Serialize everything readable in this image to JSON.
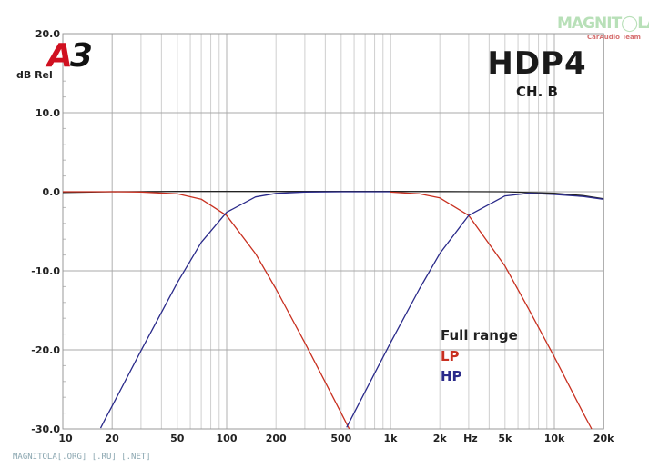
{
  "header": {
    "title": "HDP4",
    "subtitle": "CH. B",
    "logo": "A3",
    "watermark": "MAGNITOLA",
    "watermark_sub": "CarAudio Team"
  },
  "footer": {
    "text": "MAGNITOLA[.ORG] [.RU] [.NET]"
  },
  "chart_data": {
    "type": "line",
    "title": "HDP4",
    "subtitle": "CH. B",
    "ylabel": "dB Rel",
    "xlabel": "Hz",
    "xscale": "log",
    "xlim": [
      10,
      20000
    ],
    "ylim": [
      -30,
      20
    ],
    "grid": true,
    "legend_position": "bottom-right",
    "yticks": [
      {
        "v": 20,
        "label": "20.0"
      },
      {
        "v": 10,
        "label": "10.0"
      },
      {
        "v": 0,
        "label": "0.0"
      },
      {
        "v": -10,
        "label": "-10.0"
      },
      {
        "v": -20,
        "label": "-20.0"
      },
      {
        "v": -30,
        "label": "-30.0"
      }
    ],
    "xticks": [
      {
        "v": 10,
        "label": "10"
      },
      {
        "v": 20,
        "label": "20"
      },
      {
        "v": 50,
        "label": "50"
      },
      {
        "v": 100,
        "label": "100"
      },
      {
        "v": 200,
        "label": "200"
      },
      {
        "v": 500,
        "label": "500"
      },
      {
        "v": 1000,
        "label": "1k"
      },
      {
        "v": 2000,
        "label": "2k"
      },
      {
        "v": 5000,
        "label": "5k"
      },
      {
        "v": 10000,
        "label": "10k"
      },
      {
        "v": 20000,
        "label": "20k"
      }
    ],
    "series": [
      {
        "name": "Full range",
        "color": "#222222",
        "points": [
          [
            10,
            -0.1
          ],
          [
            20,
            0
          ],
          [
            50,
            0.05
          ],
          [
            100,
            0.05
          ],
          [
            500,
            0.05
          ],
          [
            1000,
            0.05
          ],
          [
            2000,
            0.02
          ],
          [
            5000,
            0
          ],
          [
            7000,
            -0.1
          ],
          [
            10000,
            -0.2
          ],
          [
            15000,
            -0.5
          ],
          [
            20000,
            -0.9
          ]
        ]
      },
      {
        "name": "LP",
        "color": "#c83020",
        "points": [
          [
            10,
            0
          ],
          [
            20,
            0
          ],
          [
            30,
            -0.04
          ],
          [
            50,
            -0.26
          ],
          [
            70,
            -0.94
          ],
          [
            100,
            -3.01
          ],
          [
            150,
            -7.83
          ],
          [
            200,
            -12.3
          ],
          [
            300,
            -19.1
          ],
          [
            400,
            -24.1
          ],
          [
            500,
            -28.0
          ],
          [
            560,
            -30
          ]
        ]
      },
      {
        "name": "HP",
        "color": "#2a2a8a",
        "points": [
          [
            17,
            -29.9
          ],
          [
            18,
            -28.9
          ],
          [
            20,
            -27.1
          ],
          [
            30,
            -20.1
          ],
          [
            50,
            -11.5
          ],
          [
            70,
            -6.4
          ],
          [
            100,
            -2.6
          ],
          [
            150,
            -0.65
          ],
          [
            200,
            -0.21
          ],
          [
            300,
            -0.04
          ],
          [
            500,
            0
          ],
          [
            1000,
            0
          ]
        ]
      },
      {
        "name": "LP",
        "color": "#c83020",
        "points": [
          [
            1000,
            -0.05
          ],
          [
            1500,
            -0.26
          ],
          [
            2000,
            -0.78
          ],
          [
            3000,
            -3.0
          ],
          [
            5000,
            -9.4
          ],
          [
            7000,
            -14.9
          ],
          [
            10000,
            -20.9
          ],
          [
            15000,
            -28.0
          ],
          [
            16900,
            -30
          ]
        ]
      },
      {
        "name": "HP",
        "color": "#2a2a8a",
        "points": [
          [
            540,
            -29.8
          ],
          [
            700,
            -25.3
          ],
          [
            1000,
            -19.1
          ],
          [
            1500,
            -12.3
          ],
          [
            2000,
            -7.8
          ],
          [
            3000,
            -3.0
          ],
          [
            5000,
            -0.53
          ],
          [
            7000,
            -0.2
          ],
          [
            10000,
            -0.35
          ],
          [
            15000,
            -0.6
          ],
          [
            20000,
            -0.95
          ]
        ]
      }
    ],
    "legend": [
      {
        "label": "Full range",
        "color": "#222222"
      },
      {
        "label": "LP",
        "color": "#c83020"
      },
      {
        "label": "HP",
        "color": "#2a2a8a"
      }
    ]
  }
}
